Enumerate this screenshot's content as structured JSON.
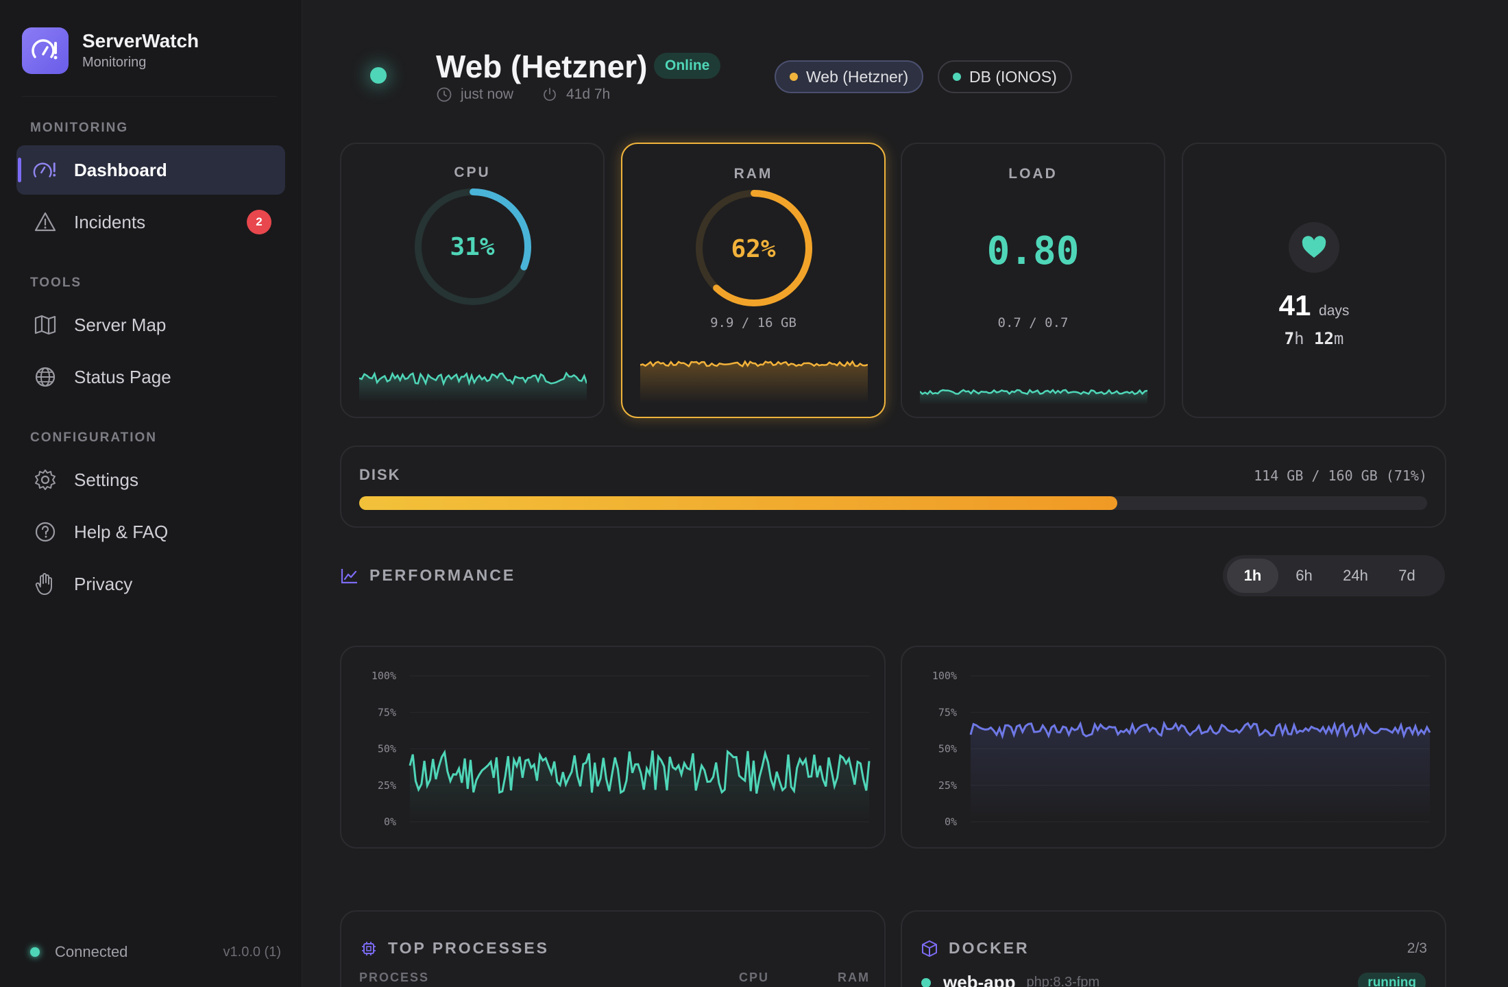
{
  "app": {
    "title": "ServerWatch",
    "subtitle": "Monitoring"
  },
  "sidebar": {
    "sections": [
      {
        "label": "MONITORING"
      },
      {
        "label": "TOOLS"
      },
      {
        "label": "CONFIGURATION"
      }
    ],
    "items": [
      {
        "label": "Dashboard",
        "icon": "gauge-icon",
        "active": true
      },
      {
        "label": "Incidents",
        "icon": "warning-icon",
        "badge": "2"
      },
      {
        "label": "Server Map",
        "icon": "map-icon"
      },
      {
        "label": "Status Page",
        "icon": "globe-icon"
      },
      {
        "label": "Settings",
        "icon": "gear-icon"
      },
      {
        "label": "Help & FAQ",
        "icon": "help-icon"
      },
      {
        "label": "Privacy",
        "icon": "hand-icon"
      }
    ],
    "footer": {
      "status": "Connected",
      "version": "v1.0.0 (1)"
    }
  },
  "header": {
    "server_name": "Web (Hetzner)",
    "status": "Online",
    "last_update": "just now",
    "uptime_short": "41d 7h",
    "servers": [
      {
        "label": "Web (Hetzner)",
        "dot_color": "#f0b43c",
        "active": true
      },
      {
        "label": "DB (IONOS)",
        "dot_color": "#4fd6b8",
        "active": false
      }
    ]
  },
  "metrics": {
    "cpu": {
      "label": "CPU",
      "value": "31%",
      "percent": 31
    },
    "ram": {
      "label": "RAM",
      "value": "62%",
      "percent": 62,
      "detail": "9.9 / 16 GB"
    },
    "load": {
      "label": "LOAD",
      "value": "0.80",
      "detail": "0.7 / 0.7"
    },
    "uptime": {
      "days": "41",
      "days_unit": "days",
      "hours": "7",
      "hours_unit": "h",
      "minutes": "12",
      "minutes_unit": "m"
    }
  },
  "disk": {
    "label": "DISK",
    "value": "114 GB / 160 GB (71%)",
    "percent": 71
  },
  "performance": {
    "title": "PERFORMANCE",
    "ranges": [
      "1h",
      "6h",
      "24h",
      "7d"
    ],
    "active_range": "1h",
    "y_ticks": [
      "100%",
      "75%",
      "50%",
      "25%",
      "0%"
    ]
  },
  "processes": {
    "title": "TOP PROCESSES",
    "columns": [
      "PROCESS",
      "CPU",
      "RAM"
    ]
  },
  "docker": {
    "title": "DOCKER",
    "count": "2/3",
    "containers": [
      {
        "name": "web-app",
        "image": "php:8.3-fpm",
        "status": "running"
      }
    ]
  },
  "colors": {
    "accent": "#7c6cf5",
    "teal": "#4fd6b8",
    "amber": "#f0b43c",
    "cpu_blue": "#4ab3d8",
    "ram_orange": "#f2a42a",
    "perf_blue": "#6e78e6"
  }
}
